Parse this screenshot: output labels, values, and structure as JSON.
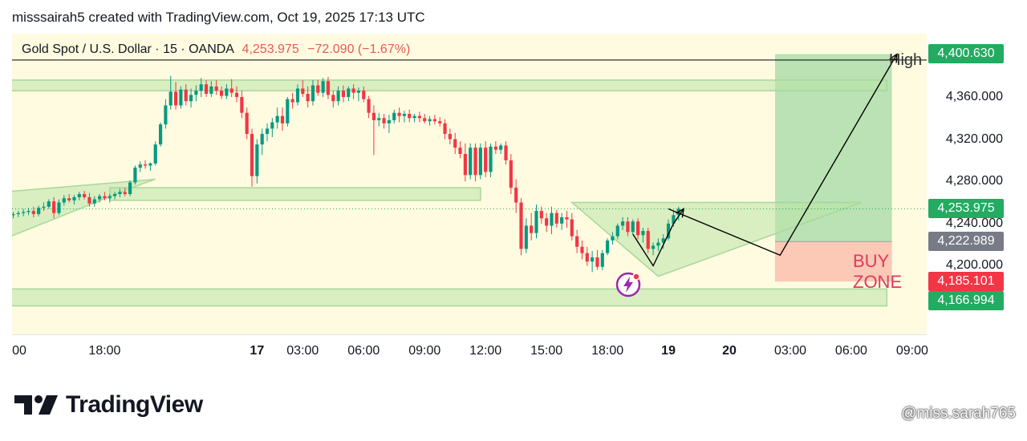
{
  "header": {
    "attribution": "misssairah5 created with TradingView.com, Oct 19, 2025 17:13 UTC"
  },
  "symbol": {
    "name": "Gold Spot / U.S. Dollar · 15 · OANDA",
    "price": "4,253.975",
    "change": "−72.090 (−1.67%)"
  },
  "price_tags": [
    {
      "value": "4,400.630",
      "color": "#22ab61"
    },
    {
      "value": "4,253.975",
      "color": "#22ab61"
    },
    {
      "value": "4,222.989",
      "color": "#787b86"
    },
    {
      "value": "4,185.101",
      "color": "#f23645"
    },
    {
      "value": "4,166.994",
      "color": "#22ab61"
    }
  ],
  "annotations": {
    "high_label": "High",
    "buy_zone_label": "BUY ZONE"
  },
  "brand": {
    "logo_text": "TradingView"
  },
  "watermark": "@miss.sarah765",
  "colors": {
    "up": "#089981",
    "down": "#f23645",
    "zone_fill": "#b9e3a8",
    "target_fill": "#a3d9a5",
    "buy_fill": "#fbc9b5",
    "background": "#fffbe0"
  },
  "chart_data": {
    "type": "candlestick",
    "symbol": "XAUUSD",
    "interval": "15",
    "ylim": [
      4135,
      4420
    ],
    "yticks": [
      4200,
      4240,
      4280,
      4320,
      4360
    ],
    "xticks": [
      {
        "x": 0,
        "label": "00"
      },
      {
        "x": 18,
        "label": "18:00"
      },
      {
        "x": 48,
        "label": "17",
        "day": true
      },
      {
        "x": 57,
        "label": "03:00"
      },
      {
        "x": 69,
        "label": "06:00"
      },
      {
        "x": 81,
        "label": "09:00"
      },
      {
        "x": 93,
        "label": "12:00"
      },
      {
        "x": 105,
        "label": "15:00"
      },
      {
        "x": 117,
        "label": "18:00"
      },
      {
        "x": 129,
        "label": "19",
        "day": true
      },
      {
        "x": 141,
        "label": "20",
        "day": true
      },
      {
        "x": 153,
        "label": "03:00"
      },
      {
        "x": 165,
        "label": "06:00"
      },
      {
        "x": 177,
        "label": "09:00"
      }
    ],
    "ohlc": [
      [
        4248,
        4251,
        4245,
        4249
      ],
      [
        4249,
        4252,
        4246,
        4250
      ],
      [
        4250,
        4254,
        4247,
        4251
      ],
      [
        4251,
        4255,
        4248,
        4252
      ],
      [
        4252,
        4256,
        4246,
        4249
      ],
      [
        4249,
        4257,
        4247,
        4255
      ],
      [
        4255,
        4260,
        4252,
        4256
      ],
      [
        4256,
        4263,
        4254,
        4261
      ],
      [
        4261,
        4265,
        4245,
        4250
      ],
      [
        4250,
        4263,
        4248,
        4260
      ],
      [
        4260,
        4267,
        4257,
        4264
      ],
      [
        4264,
        4268,
        4260,
        4262
      ],
      [
        4262,
        4267,
        4258,
        4265
      ],
      [
        4265,
        4270,
        4262,
        4268
      ],
      [
        4268,
        4271,
        4263,
        4265
      ],
      [
        4265,
        4269,
        4256,
        4259
      ],
      [
        4259,
        4266,
        4256,
        4263
      ],
      [
        4263,
        4268,
        4260,
        4266
      ],
      [
        4266,
        4270,
        4262,
        4264
      ],
      [
        4264,
        4268,
        4260,
        4266
      ],
      [
        4266,
        4270,
        4263,
        4268
      ],
      [
        4268,
        4273,
        4265,
        4270
      ],
      [
        4270,
        4274,
        4266,
        4268
      ],
      [
        4268,
        4281,
        4266,
        4279
      ],
      [
        4279,
        4295,
        4277,
        4293
      ],
      [
        4293,
        4299,
        4289,
        4296
      ],
      [
        4296,
        4300,
        4292,
        4295
      ],
      [
        4295,
        4298,
        4290,
        4297
      ],
      [
        4297,
        4318,
        4295,
        4315
      ],
      [
        4315,
        4336,
        4313,
        4334
      ],
      [
        4334,
        4358,
        4330,
        4352
      ],
      [
        4352,
        4380,
        4348,
        4365
      ],
      [
        4365,
        4374,
        4348,
        4352
      ],
      [
        4352,
        4370,
        4349,
        4367
      ],
      [
        4367,
        4372,
        4352,
        4356
      ],
      [
        4356,
        4368,
        4350,
        4362
      ],
      [
        4362,
        4371,
        4356,
        4366
      ],
      [
        4366,
        4378,
        4360,
        4372
      ],
      [
        4372,
        4376,
        4360,
        4363
      ],
      [
        4363,
        4375,
        4360,
        4370
      ],
      [
        4370,
        4376,
        4362,
        4366
      ],
      [
        4366,
        4370,
        4358,
        4361
      ],
      [
        4361,
        4372,
        4358,
        4368
      ],
      [
        4368,
        4377,
        4360,
        4364
      ],
      [
        4364,
        4370,
        4355,
        4360
      ],
      [
        4360,
        4366,
        4340,
        4345
      ],
      [
        4345,
        4350,
        4320,
        4325
      ],
      [
        4325,
        4330,
        4275,
        4285
      ],
      [
        4285,
        4320,
        4278,
        4315
      ],
      [
        4315,
        4330,
        4305,
        4325
      ],
      [
        4325,
        4335,
        4318,
        4330
      ],
      [
        4330,
        4340,
        4322,
        4336
      ],
      [
        4336,
        4350,
        4330,
        4342
      ],
      [
        4342,
        4350,
        4328,
        4335
      ],
      [
        4335,
        4360,
        4332,
        4358
      ],
      [
        4358,
        4364,
        4349,
        4355
      ],
      [
        4355,
        4372,
        4352,
        4368
      ],
      [
        4368,
        4376,
        4360,
        4363
      ],
      [
        4363,
        4370,
        4350,
        4356
      ],
      [
        4356,
        4376,
        4352,
        4371
      ],
      [
        4371,
        4376,
        4361,
        4364
      ],
      [
        4364,
        4378,
        4360,
        4375
      ],
      [
        4375,
        4379,
        4358,
        4362
      ],
      [
        4362,
        4366,
        4350,
        4356
      ],
      [
        4356,
        4370,
        4352,
        4366
      ],
      [
        4366,
        4371,
        4355,
        4360
      ],
      [
        4360,
        4370,
        4356,
        4368
      ],
      [
        4368,
        4372,
        4358,
        4364
      ],
      [
        4364,
        4369,
        4356,
        4366
      ],
      [
        4366,
        4370,
        4355,
        4358
      ],
      [
        4358,
        4361,
        4340,
        4345
      ],
      [
        4345,
        4352,
        4305,
        4338
      ],
      [
        4338,
        4345,
        4332,
        4340
      ],
      [
        4340,
        4344,
        4330,
        4335
      ],
      [
        4335,
        4343,
        4326,
        4338
      ],
      [
        4338,
        4348,
        4335,
        4345
      ],
      [
        4345,
        4350,
        4336,
        4342
      ],
      [
        4342,
        4347,
        4336,
        4344
      ],
      [
        4344,
        4348,
        4336,
        4340
      ],
      [
        4340,
        4344,
        4336,
        4342
      ],
      [
        4342,
        4346,
        4336,
        4340
      ],
      [
        4340,
        4344,
        4335,
        4337
      ],
      [
        4337,
        4342,
        4333,
        4339
      ],
      [
        4339,
        4343,
        4334,
        4337
      ],
      [
        4337,
        4341,
        4332,
        4335
      ],
      [
        4335,
        4339,
        4320,
        4325
      ],
      [
        4325,
        4330,
        4315,
        4320
      ],
      [
        4320,
        4326,
        4306,
        4312
      ],
      [
        4312,
        4318,
        4302,
        4306
      ],
      [
        4306,
        4316,
        4280,
        4286
      ],
      [
        4286,
        4316,
        4282,
        4312
      ],
      [
        4312,
        4316,
        4280,
        4286
      ],
      [
        4286,
        4316,
        4282,
        4312
      ],
      [
        4312,
        4318,
        4284,
        4289
      ],
      [
        4289,
        4316,
        4284,
        4313
      ],
      [
        4313,
        4318,
        4306,
        4310
      ],
      [
        4310,
        4316,
        4306,
        4314
      ],
      [
        4314,
        4318,
        4296,
        4300
      ],
      [
        4300,
        4306,
        4268,
        4274
      ],
      [
        4274,
        4282,
        4250,
        4260
      ],
      [
        4260,
        4264,
        4210,
        4216
      ],
      [
        4216,
        4245,
        4212,
        4238
      ],
      [
        4238,
        4250,
        4224,
        4231
      ],
      [
        4231,
        4258,
        4226,
        4252
      ],
      [
        4252,
        4256,
        4240,
        4245
      ],
      [
        4245,
        4250,
        4232,
        4238
      ],
      [
        4238,
        4256,
        4230,
        4250
      ],
      [
        4250,
        4253,
        4236,
        4240
      ],
      [
        4240,
        4250,
        4234,
        4246
      ],
      [
        4246,
        4252,
        4236,
        4244
      ],
      [
        4244,
        4250,
        4224,
        4228
      ],
      [
        4228,
        4234,
        4212,
        4218
      ],
      [
        4218,
        4224,
        4206,
        4212
      ],
      [
        4212,
        4218,
        4200,
        4204
      ],
      [
        4204,
        4214,
        4194,
        4208
      ],
      [
        4208,
        4215,
        4196,
        4199
      ],
      [
        4199,
        4215,
        4196,
        4212
      ],
      [
        4212,
        4226,
        4210,
        4224
      ],
      [
        4224,
        4232,
        4220,
        4228
      ],
      [
        4228,
        4240,
        4225,
        4238
      ],
      [
        4238,
        4246,
        4234,
        4242
      ],
      [
        4242,
        4246,
        4228,
        4232
      ],
      [
        4232,
        4244,
        4230,
        4242
      ],
      [
        4242,
        4245,
        4225,
        4229
      ],
      [
        4229,
        4236,
        4222,
        4233
      ],
      [
        4233,
        4236,
        4212,
        4216
      ],
      [
        4216,
        4222,
        4210,
        4219
      ],
      [
        4219,
        4226,
        4214,
        4222
      ],
      [
        4222,
        4230,
        4216,
        4226
      ],
      [
        4226,
        4244,
        4224,
        4240
      ],
      [
        4240,
        4252,
        4237,
        4248
      ],
      [
        4248,
        4256,
        4243,
        4254
      ]
    ],
    "trend_zones": [
      {
        "name": "ascending channel",
        "points": [
          [
            -2,
            4225
          ],
          [
            25,
            4277
          ],
          [
            28,
            4282
          ],
          [
            -2,
            4270
          ]
        ]
      },
      {
        "name": "support band",
        "points": [
          [
            19,
            4262
          ],
          [
            92,
            4262
          ],
          [
            92,
            4274
          ],
          [
            19,
            4274
          ]
        ]
      },
      {
        "name": "triangle",
        "points": [
          [
            110,
            4260
          ],
          [
            167,
            4260
          ],
          [
            127,
            4190
          ]
        ]
      },
      {
        "name": "top band",
        "points": [
          [
            -2,
            4366
          ],
          [
            172,
            4366
          ],
          [
            172,
            4376
          ],
          [
            -2,
            4376
          ]
        ]
      },
      {
        "name": "bottom band",
        "points": [
          [
            -2,
            4162
          ],
          [
            172,
            4162
          ],
          [
            172,
            4178
          ],
          [
            -2,
            4178
          ]
        ]
      }
    ],
    "target_box": {
      "x0": 150,
      "x1": 173,
      "y0": 4222.989,
      "y1": 4400.63
    },
    "buy_box": {
      "x0": 150,
      "x1": 173,
      "y0": 4185.101,
      "y1": 4222.989
    },
    "projection": [
      [
        129,
        4253.975
      ],
      [
        151,
        4210
      ],
      [
        174,
        4400.63
      ]
    ],
    "pattern_path": [
      [
        122,
        4230
      ],
      [
        126,
        4200
      ],
      [
        130,
        4240
      ],
      [
        132,
        4254
      ]
    ],
    "high_line": 4395,
    "last_price": 4253.975
  }
}
